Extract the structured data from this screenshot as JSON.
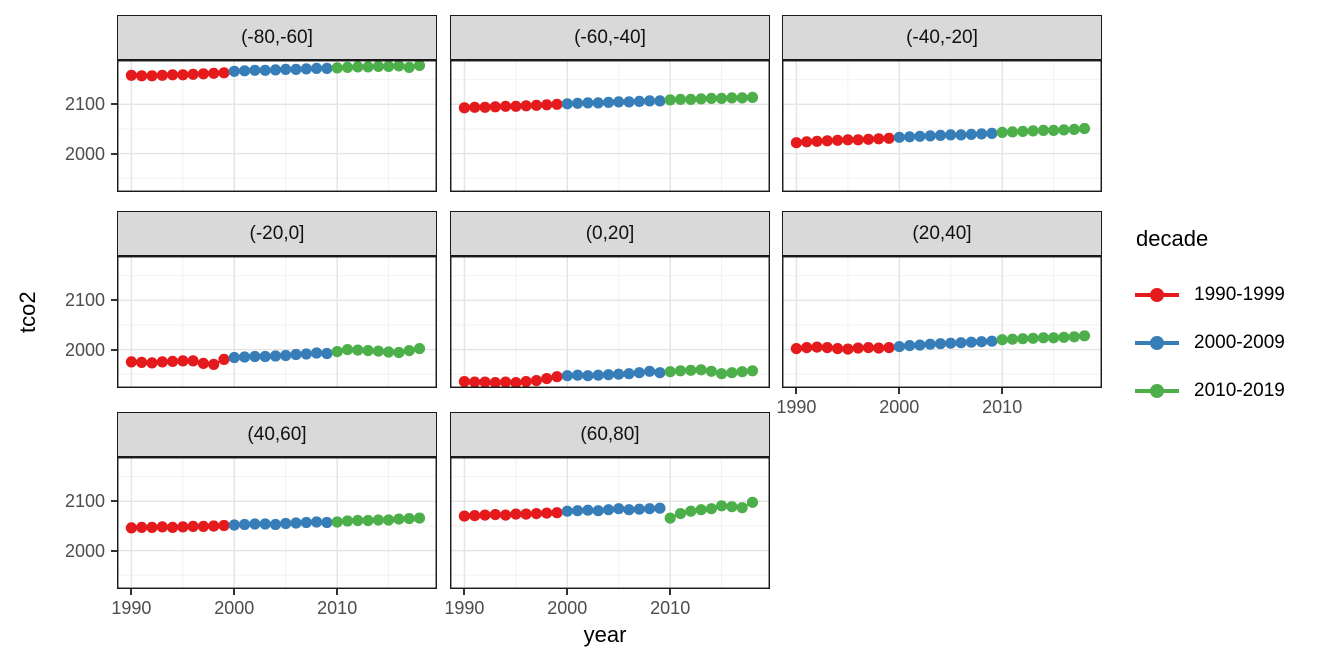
{
  "figure": {
    "y_axis_title": "tco2",
    "x_axis_title": "year"
  },
  "legend": {
    "title": "decade",
    "entries": [
      {
        "label": "1990-1999",
        "color": "#E41A1C"
      },
      {
        "label": "2000-2009",
        "color": "#377EB8"
      },
      {
        "label": "2010-2019",
        "color": "#4DAF4A"
      }
    ]
  },
  "chart_data": {
    "type": "scatter",
    "title": "",
    "xlabel": "year",
    "ylabel": "tco2",
    "facet_variable": "latitude band",
    "legend_title": "decade",
    "legend_position": "right",
    "grid": true,
    "x": [
      1990,
      1991,
      1992,
      1993,
      1994,
      1995,
      1996,
      1997,
      1998,
      1999,
      2000,
      2001,
      2002,
      2003,
      2004,
      2005,
      2006,
      2007,
      2008,
      2009,
      2010,
      2011,
      2012,
      2013,
      2014,
      2015,
      2016,
      2017,
      2018
    ],
    "x_ticks": [
      1990,
      2000,
      2010
    ],
    "y_ticks": [
      2000,
      2100
    ],
    "x_minor": [
      1995,
      2005,
      2015
    ],
    "y_minor": [
      1950,
      2050,
      2150
    ],
    "xlim": [
      1988.6,
      2019.7
    ],
    "ylim": [
      1922,
      2190
    ],
    "series": [
      {
        "name": "1990-1999",
        "color": "#E41A1C",
        "start_year": 1990,
        "end_year": 1999
      },
      {
        "name": "2000-2009",
        "color": "#377EB8",
        "start_year": 2000,
        "end_year": 2009
      },
      {
        "name": "2010-2019",
        "color": "#4DAF4A",
        "start_year": 2010,
        "end_year": 2019
      }
    ],
    "facets": [
      {
        "label": "(-80,-60]",
        "values": [
          2159,
          2158,
          2158,
          2159,
          2160,
          2160,
          2161,
          2162,
          2163,
          2164,
          2167,
          2168,
          2169,
          2169,
          2170,
          2171,
          2171,
          2172,
          2173,
          2173,
          2174,
          2175,
          2176,
          2176,
          2177,
          2177,
          2178,
          2175,
          2179
        ]
      },
      {
        "label": "(-60,-40]",
        "values": [
          2093,
          2094,
          2094,
          2095,
          2096,
          2096,
          2097,
          2098,
          2099,
          2100,
          2101,
          2102,
          2103,
          2103,
          2104,
          2105,
          2105,
          2106,
          2107,
          2107,
          2109,
          2110,
          2110,
          2111,
          2112,
          2112,
          2113,
          2113,
          2114
        ]
      },
      {
        "label": "(-40,-20]",
        "values": [
          2022,
          2024,
          2025,
          2026,
          2027,
          2028,
          2028,
          2029,
          2030,
          2031,
          2033,
          2034,
          2035,
          2036,
          2037,
          2038,
          2038,
          2039,
          2040,
          2041,
          2043,
          2044,
          2045,
          2046,
          2047,
          2047,
          2048,
          2049,
          2051
        ]
      },
      {
        "label": "(-20,0]",
        "values": [
          1975,
          1974,
          1973,
          1975,
          1976,
          1977,
          1977,
          1972,
          1970,
          1980,
          1984,
          1985,
          1986,
          1986,
          1987,
          1988,
          1990,
          1991,
          1993,
          1992,
          1996,
          2000,
          1999,
          1998,
          1997,
          1995,
          1994,
          1998,
          2002
        ]
      },
      {
        "label": "(0,20]",
        "values": [
          1935,
          1934,
          1934,
          1933,
          1934,
          1933,
          1935,
          1937,
          1941,
          1945,
          1947,
          1948,
          1947,
          1948,
          1949,
          1950,
          1951,
          1953,
          1956,
          1953,
          1955,
          1957,
          1958,
          1959,
          1956,
          1951,
          1953,
          1955,
          1957
        ]
      },
      {
        "label": "(20,40]",
        "values": [
          2002,
          2004,
          2005,
          2004,
          2002,
          2001,
          2003,
          2004,
          2003,
          2004,
          2006,
          2008,
          2009,
          2011,
          2012,
          2013,
          2014,
          2015,
          2016,
          2017,
          2020,
          2021,
          2022,
          2023,
          2024,
          2024,
          2025,
          2026,
          2028
        ]
      },
      {
        "label": "(40,60]",
        "values": [
          2046,
          2047,
          2047,
          2048,
          2047,
          2048,
          2049,
          2049,
          2050,
          2051,
          2052,
          2053,
          2054,
          2054,
          2053,
          2055,
          2056,
          2057,
          2058,
          2057,
          2058,
          2060,
          2061,
          2061,
          2062,
          2062,
          2064,
          2065,
          2066
        ]
      },
      {
        "label": "(60,80]",
        "values": [
          2070,
          2071,
          2072,
          2073,
          2072,
          2074,
          2074,
          2075,
          2076,
          2077,
          2080,
          2081,
          2082,
          2081,
          2083,
          2085,
          2083,
          2084,
          2085,
          2086,
          2066,
          2075,
          2080,
          2083,
          2085,
          2091,
          2089,
          2087,
          2098
        ]
      }
    ]
  }
}
